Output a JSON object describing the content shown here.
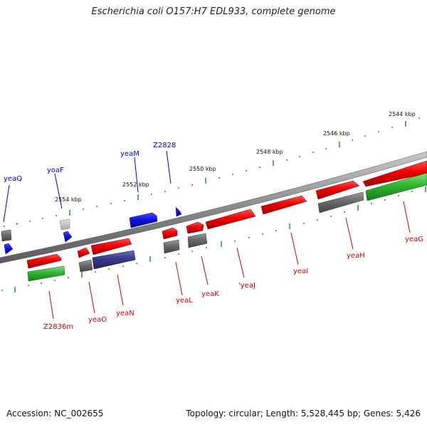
{
  "title": "Escherichia coli O157:H7 EDL933, complete genome",
  "footer": {
    "accession": "Accession: NC_002655",
    "summary": "Topology: circular; Length: 5,528,445 bp; Genes: 5,426"
  },
  "scale_labels": [
    "2544 kbp",
    "2546 kbp",
    "2548 kbp",
    "2550 kbp",
    "2552 kbp",
    "2554 kbp"
  ],
  "colors": {
    "backbone": "#808080",
    "ruler": "#2e8b2e",
    "cds_red": "#e00000",
    "gene_green": "#2aa82a",
    "gene_gray": "#666666",
    "gene_blue": "#1010e0",
    "gene_purple": "#333399",
    "label_red": "#cc0000",
    "label_blue": "#0000cc"
  },
  "gene_labels_top": [
    "yeaQ",
    "yoaF",
    "yeaM",
    "Z2828"
  ],
  "gene_labels_bottom": [
    "Z2836m",
    "yeaO",
    "yeaN",
    "yeaL",
    "yeaK",
    "'yeaJ",
    "yeaI",
    "yeaH",
    "yeaG"
  ]
}
